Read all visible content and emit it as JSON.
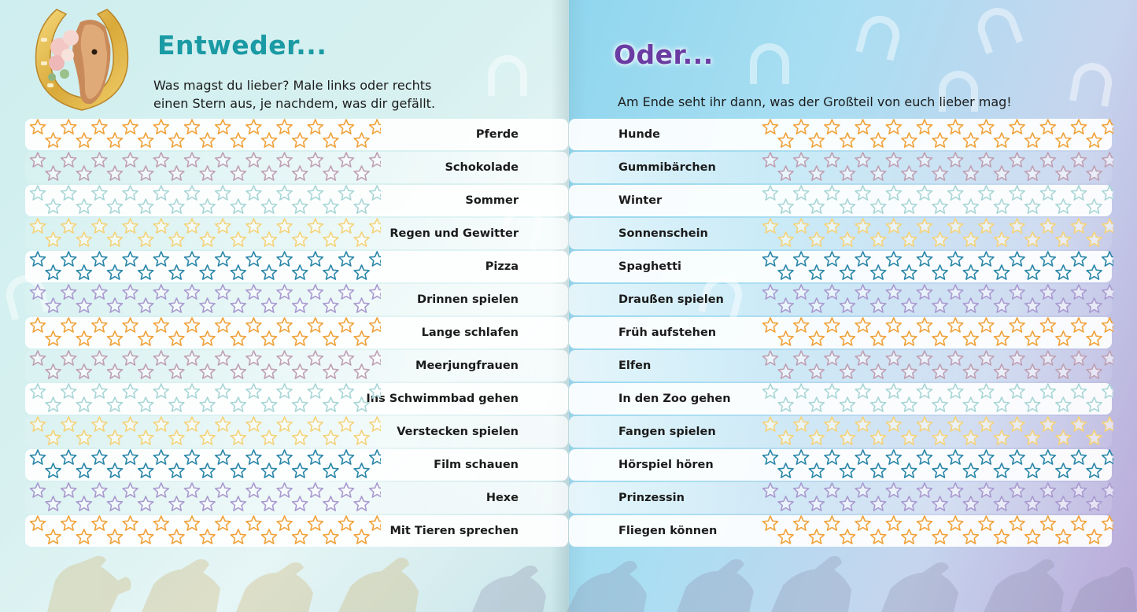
{
  "left": {
    "title": "Entweder...",
    "intro_line1": "Was magst du lieber? Male links oder rechts",
    "intro_line2": "einen Stern aus, je nachdem, was dir gefällt."
  },
  "right": {
    "title": "Oder...",
    "intro": "Am Ende seht ihr dann, was der Großteil von euch lieber mag!"
  },
  "star_colors": [
    "#f0a23a",
    "#bfa0b4",
    "#a9d6d6",
    "#f4d37a",
    "#2a86a8",
    "#a99ad0"
  ],
  "rows": [
    {
      "left": "Pferde",
      "right": "Hunde",
      "color": "#f0a23a"
    },
    {
      "left": "Schokolade",
      "right": "Gummibärchen",
      "color": "#bfa0b4"
    },
    {
      "left": "Sommer",
      "right": "Winter",
      "color": "#a9d6d6"
    },
    {
      "left": "Regen und Gewitter",
      "right": "Sonnenschein",
      "color": "#f4d37a"
    },
    {
      "left": "Pizza",
      "right": "Spaghetti",
      "color": "#2a86a8"
    },
    {
      "left": "Drinnen spielen",
      "right": "Draußen spielen",
      "color": "#a99ad0"
    },
    {
      "left": "Lange schlafen",
      "right": "Früh aufstehen",
      "color": "#f0a23a"
    },
    {
      "left": "Meerjungfrauen",
      "right": "Elfen",
      "color": "#bfa0b4"
    },
    {
      "left": "Ins Schwimmbad gehen",
      "right": "In den Zoo gehen",
      "color": "#a9d6d6"
    },
    {
      "left": "Verstecken spielen",
      "right": "Fangen spielen",
      "color": "#f4d37a"
    },
    {
      "left": "Film schauen",
      "right": "Hörspiel hören",
      "color": "#2a86a8"
    },
    {
      "left": "Hexe",
      "right": "Prinzessin",
      "color": "#a99ad0"
    },
    {
      "left": "Mit Tieren sprechen",
      "right": "Fliegen können",
      "color": "#f0a23a"
    }
  ],
  "icons": {
    "logo": "horseshoe-horse-logo",
    "background": "horseshoe-icon",
    "footer": "horse-silhouette"
  }
}
